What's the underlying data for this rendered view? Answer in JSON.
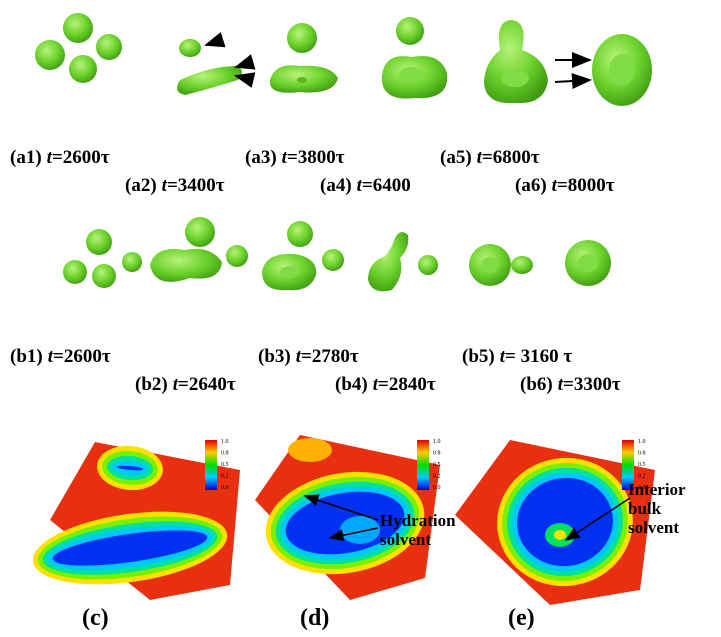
{
  "captions_a": [
    {
      "label": "(a1)",
      "var": "t",
      "value": "=2600τ"
    },
    {
      "label": "(a2)",
      "var": "t",
      "value": "=3400τ"
    },
    {
      "label": "(a3)",
      "var": "t",
      "value": "=3800τ"
    },
    {
      "label": "(a4)",
      "var": "t",
      "value": "=6400"
    },
    {
      "label": "(a5)",
      "var": "t",
      "value": "=6800τ"
    },
    {
      "label": "(a6)",
      "var": "t",
      "value": "=8000τ"
    }
  ],
  "captions_b": [
    {
      "label": "(b1)",
      "var": "t",
      "value": "=2600τ"
    },
    {
      "label": "(b2)",
      "var": "t",
      "value": "=2640τ"
    },
    {
      "label": "(b3)",
      "var": "t",
      "value": "=2780τ"
    },
    {
      "label": "(b4)",
      "var": "t",
      "value": "=2840τ"
    },
    {
      "label": "(b5)",
      "var": "t",
      "value": "= 3160 τ"
    },
    {
      "label": "(b6)",
      "var": "t",
      "value": "=3300τ"
    }
  ],
  "colorbar_ticks": [
    "1.0",
    "0.8",
    "0.5",
    "0.2",
    "0.0"
  ],
  "panels": [
    {
      "label": "(c)",
      "annotation": []
    },
    {
      "label": "(d)",
      "annotation": [
        "Hydration",
        "solvent"
      ]
    },
    {
      "label": "(e)",
      "annotation": [
        "Interior",
        "bulk",
        "solvent"
      ]
    }
  ]
}
